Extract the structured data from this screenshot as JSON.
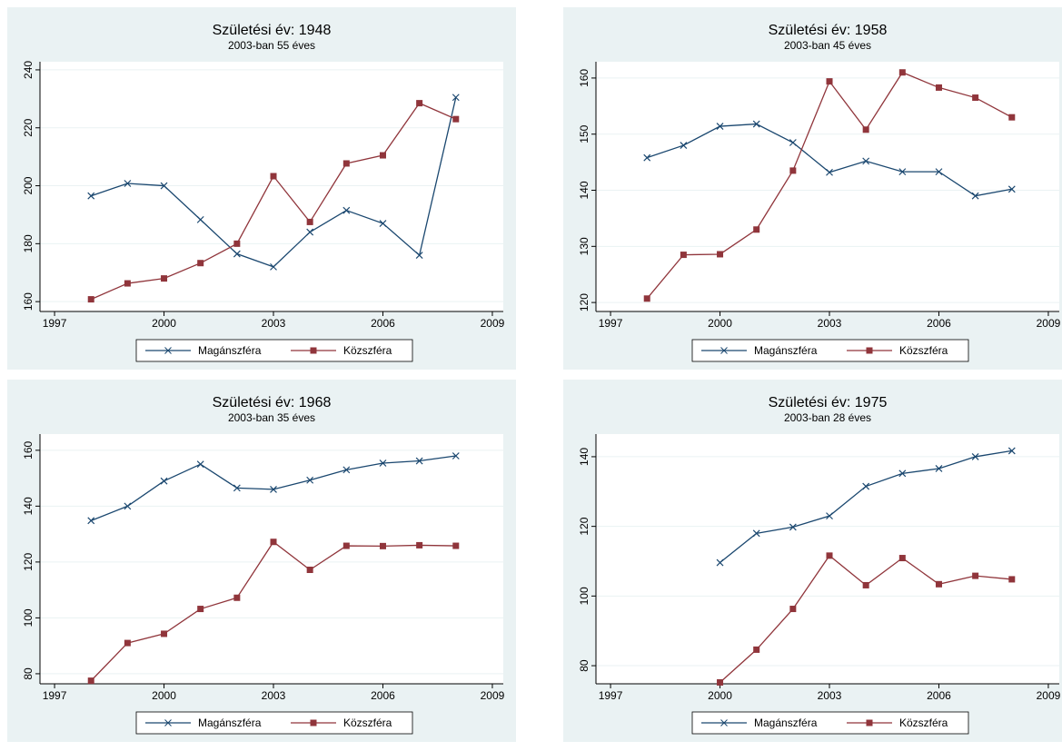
{
  "chart_data": [
    {
      "type": "line",
      "title": "Születési év: 1948",
      "subtitle": "2003-ban 55 éves",
      "x": [
        1998,
        1999,
        2000,
        2001,
        2002,
        2003,
        2004,
        2005,
        2006,
        2007,
        2008
      ],
      "series": [
        {
          "name": "Magánszféra",
          "color": "#1a476f",
          "marker": "x",
          "values": [
            196.5,
            200.8,
            200,
            188.3,
            176.5,
            172,
            184,
            191.5,
            187,
            176,
            230.5
          ]
        },
        {
          "name": "Közszféra",
          "color": "#90353b",
          "marker": "square",
          "values": [
            160.8,
            166.3,
            168,
            173.3,
            180,
            203.3,
            187.5,
            207.7,
            210.5,
            228.5,
            223
          ]
        }
      ],
      "xlim": [
        1996.6,
        2009.3
      ],
      "xticks": [
        1997,
        2000,
        2003,
        2006,
        2009
      ],
      "ylim": [
        156.6,
        242.8
      ],
      "yticks": [
        160,
        180,
        200,
        220,
        240
      ],
      "grid": true
    },
    {
      "type": "line",
      "title": "Születési év: 1958",
      "subtitle": "2003-ban 45 éves",
      "x": [
        1998,
        1999,
        2000,
        2001,
        2002,
        2003,
        2004,
        2005,
        2006,
        2007,
        2008
      ],
      "series": [
        {
          "name": "Magánszféra",
          "color": "#1a476f",
          "marker": "x",
          "values": [
            145.8,
            148,
            151.4,
            151.8,
            148.5,
            143.2,
            145.2,
            143.3,
            143.3,
            139,
            140.2
          ]
        },
        {
          "name": "Közszféra",
          "color": "#90353b",
          "marker": "square",
          "values": [
            120.7,
            128.5,
            128.6,
            133,
            143.5,
            159.4,
            150.8,
            161,
            158.3,
            156.5,
            153
          ]
        }
      ],
      "xlim": [
        1996.6,
        2009.3
      ],
      "xticks": [
        1997,
        2000,
        2003,
        2006,
        2009
      ],
      "ylim": [
        118.4,
        162.9
      ],
      "yticks": [
        120,
        130,
        140,
        150,
        160
      ],
      "grid": true
    },
    {
      "type": "line",
      "title": "Születési év: 1968",
      "subtitle": "2003-ban 35 éves",
      "x": [
        1998,
        1999,
        2000,
        2001,
        2002,
        2003,
        2004,
        2005,
        2006,
        2007,
        2008
      ],
      "series": [
        {
          "name": "Magánszféra",
          "color": "#1a476f",
          "marker": "x",
          "values": [
            134.8,
            140,
            149,
            155,
            146.5,
            146,
            149.3,
            153,
            155.4,
            156.2,
            158
          ]
        },
        {
          "name": "Közszféra",
          "color": "#90353b",
          "marker": "square",
          "values": [
            77.5,
            91,
            94.3,
            103.2,
            107.2,
            127.2,
            117.2,
            125.8,
            125.7,
            126,
            125.8
          ]
        }
      ],
      "xlim": [
        1996.6,
        2009.3
      ],
      "xticks": [
        1997,
        2000,
        2003,
        2006,
        2009
      ],
      "ylim": [
        76.4,
        165.8
      ],
      "yticks": [
        80,
        100,
        120,
        140,
        160
      ],
      "grid": true
    },
    {
      "type": "line",
      "title": "Születési év: 1975",
      "subtitle": "2003-ban 28 éves",
      "x": [
        2000,
        2001,
        2002,
        2003,
        2004,
        2005,
        2006,
        2007,
        2008
      ],
      "series": [
        {
          "name": "Magánszféra",
          "color": "#1a476f",
          "marker": "x",
          "values": [
            109.6,
            118,
            119.8,
            123,
            131.5,
            135.2,
            136.6,
            140,
            141.7
          ]
        },
        {
          "name": "Közszféra",
          "color": "#90353b",
          "marker": "square",
          "values": [
            75.2,
            84.6,
            96.3,
            111.6,
            103.1,
            110.9,
            103.4,
            105.8,
            104.8
          ]
        }
      ],
      "xlim": [
        1996.6,
        2009.3
      ],
      "xticks": [
        1997,
        2000,
        2003,
        2006,
        2009
      ],
      "ylim": [
        74.8,
        146.5
      ],
      "yticks": [
        80,
        100,
        120,
        140
      ],
      "grid": true
    }
  ]
}
